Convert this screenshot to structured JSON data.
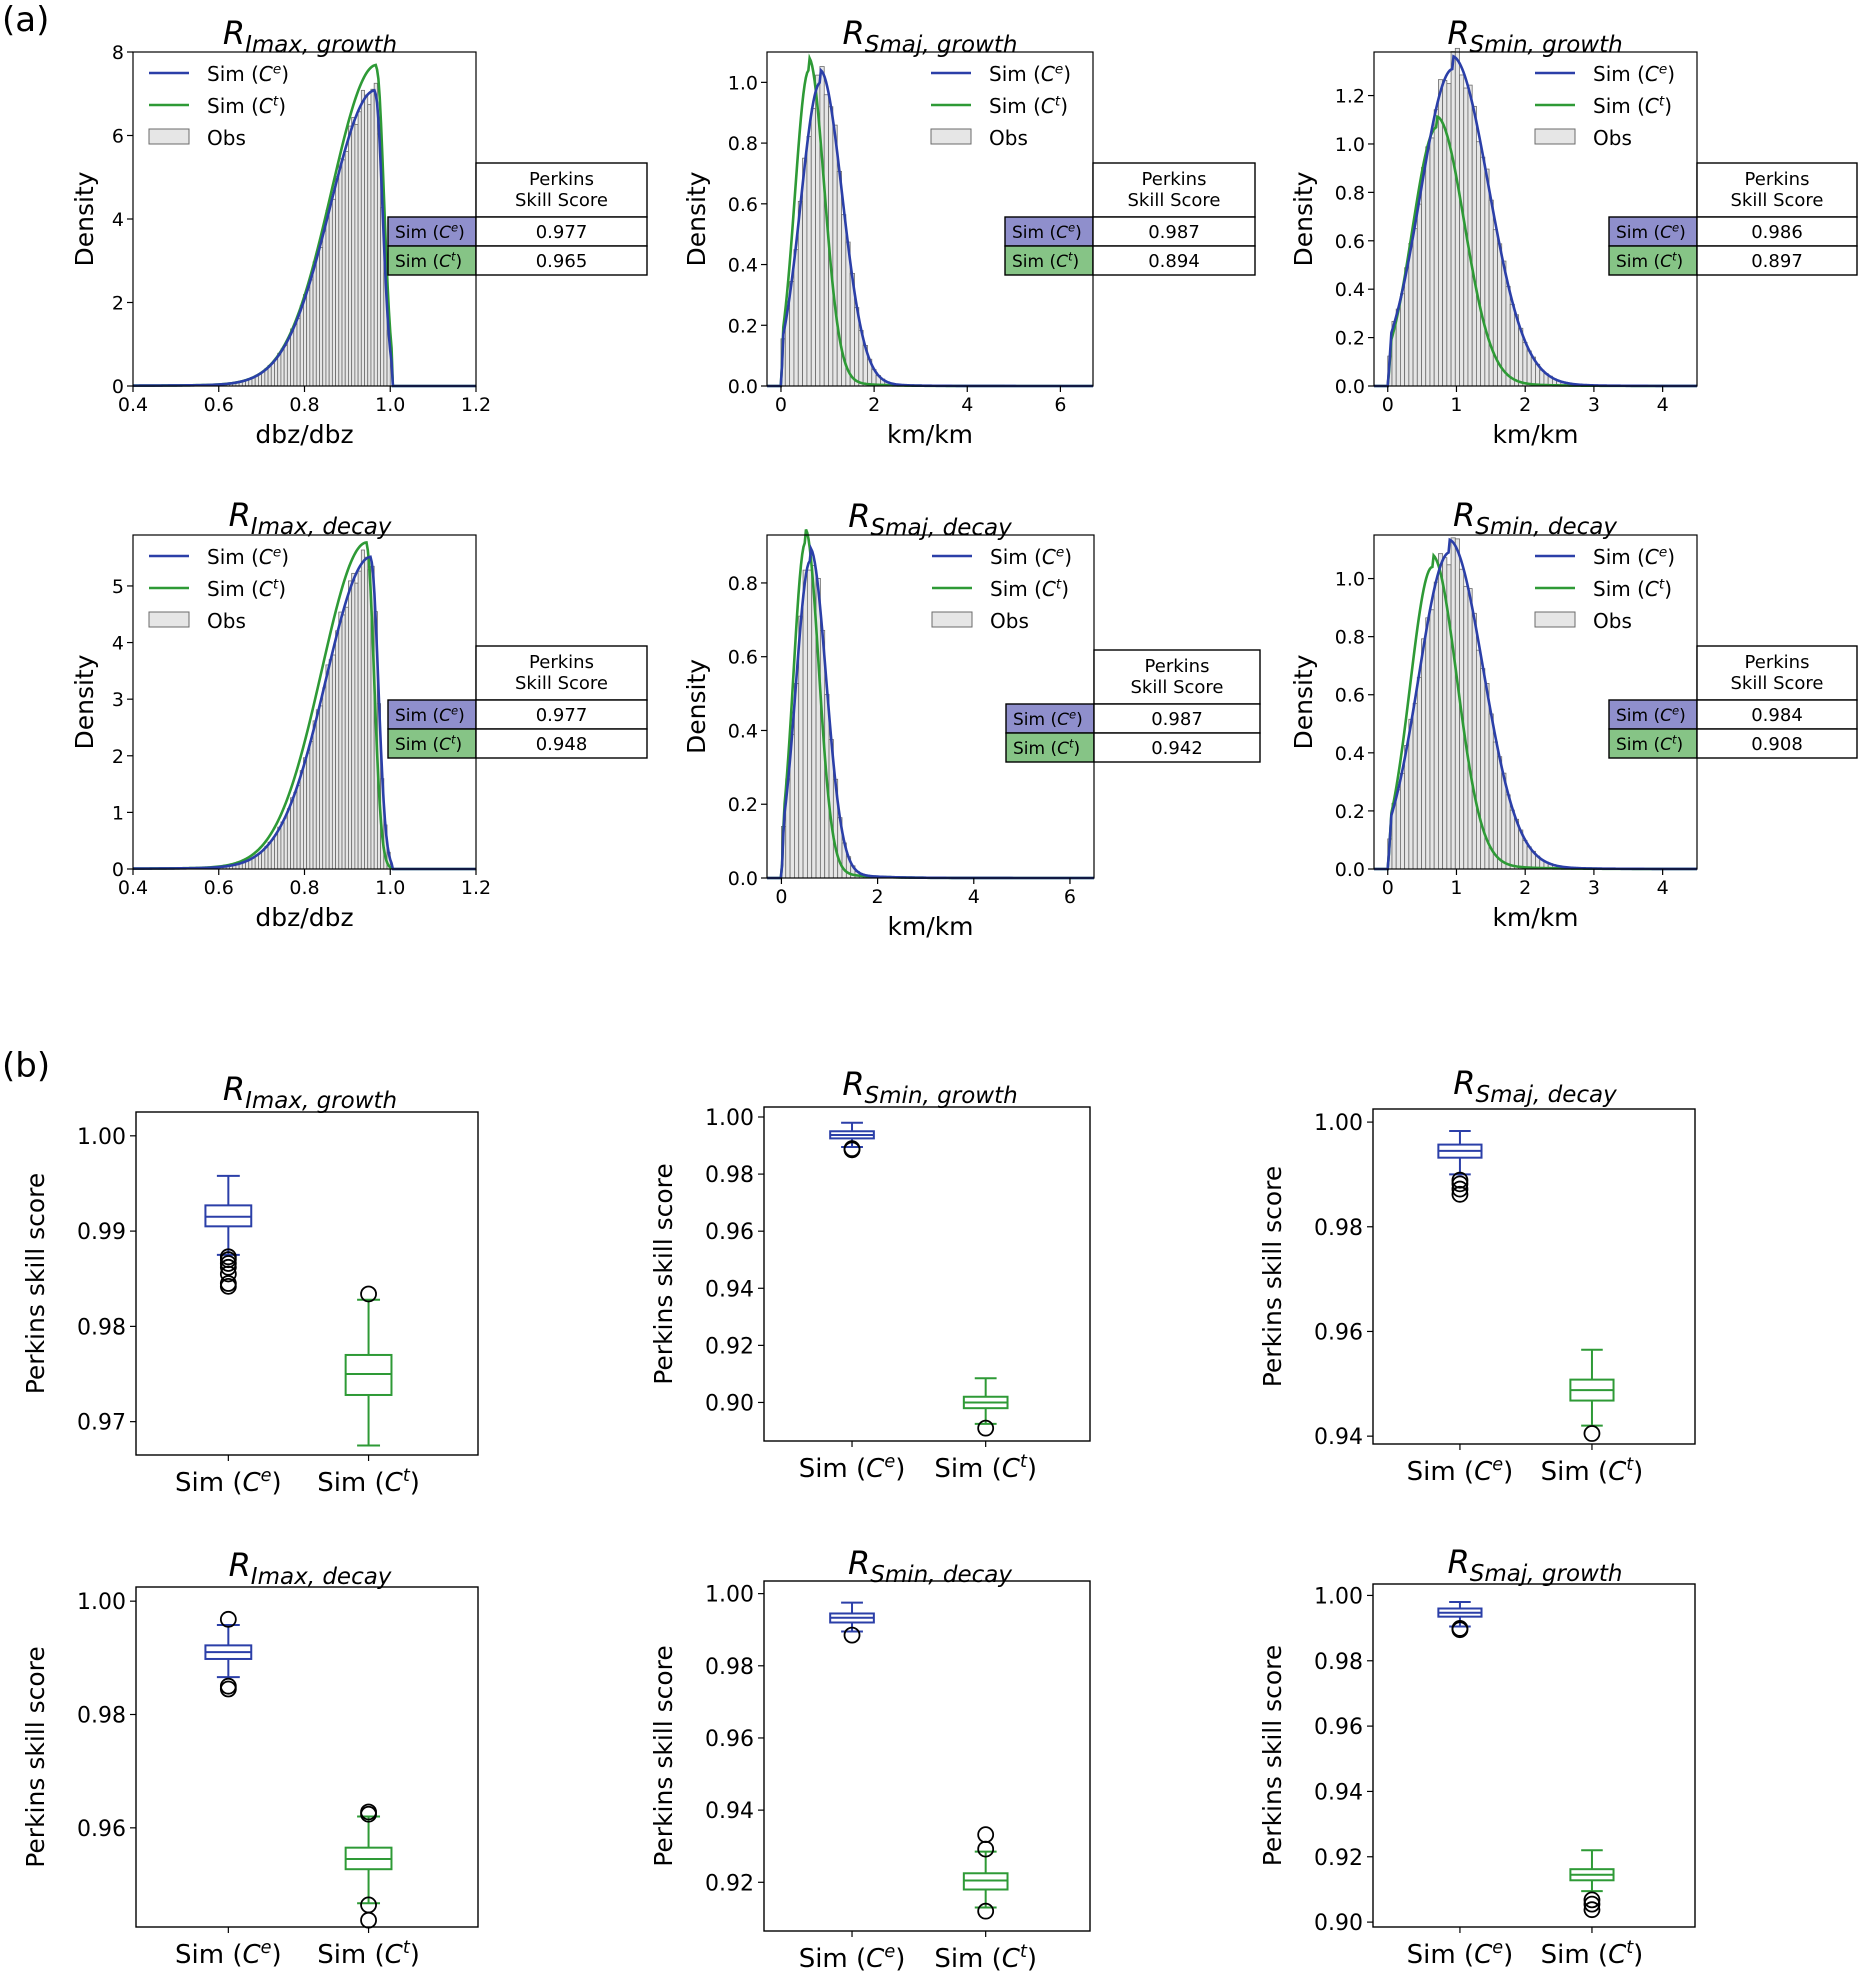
{
  "figure": {
    "panel_a_label": "(a)",
    "panel_b_label": "(b)"
  },
  "colors": {
    "sim_ce": "#2b3fa8",
    "sim_ct": "#2e9a36",
    "obs_fill": "#e6e6e6",
    "obs_edge": "#6b6b6b",
    "table_ce_bg": "#8f8fcc",
    "table_ct_bg": "#86c486"
  },
  "chart_data": [
    {
      "type": "histogram_density",
      "title": "R",
      "title_subscript": "Imax, growth",
      "xlabel": "dbz/dbz",
      "ylabel": "Density",
      "xlim": [
        0.4,
        1.2
      ],
      "ylim": [
        0,
        8
      ],
      "xticks": [
        "0.4",
        "0.6",
        "0.8",
        "1.0",
        "1.2"
      ],
      "yticks": [
        "0",
        "2",
        "4",
        "6",
        "8"
      ],
      "legend": [
        "Sim (C^e)",
        "Sim (C^t)",
        "Obs"
      ],
      "legend_placement": "top-left",
      "dist": {
        "kind": "leftskew",
        "mode": 0.965,
        "cutoff": 1.0,
        "lo": 0.4,
        "peak": 7.0,
        "peak_ct": 7.6,
        "shift_ct": 0.003
      },
      "table": {
        "header": [
          "Perkins",
          "Skill Score"
        ],
        "rows": [
          {
            "label": "Sim (C^e)",
            "value": "0.977"
          },
          {
            "label": "Sim (C^t)",
            "value": "0.965"
          }
        ]
      }
    },
    {
      "type": "histogram_density",
      "title": "R",
      "title_subscript": "Smaj, growth",
      "xlabel": "km/km",
      "ylabel": "Density",
      "xlim": [
        -0.3,
        6.7
      ],
      "ylim": [
        0,
        1.1
      ],
      "xticks": [
        "0",
        "2",
        "4",
        "6"
      ],
      "yticks": [
        "0.0",
        "0.2",
        "0.4",
        "0.6",
        "0.8",
        "1.0"
      ],
      "legend": [
        "Sim (C^e)",
        "Sim (C^t)",
        "Obs"
      ],
      "legend_placement": "top-right",
      "dist": {
        "kind": "rightskew",
        "mode": 0.85,
        "peak": 1.0,
        "peak_ct": 1.04,
        "mode_ct": 0.6,
        "xmax": 6.5
      },
      "table": {
        "header": [
          "Perkins",
          "Skill Score"
        ],
        "rows": [
          {
            "label": "Sim (C^e)",
            "value": "0.987"
          },
          {
            "label": "Sim (C^t)",
            "value": "0.894"
          }
        ]
      }
    },
    {
      "type": "histogram_density",
      "title": "R",
      "title_subscript": "Smin, growth",
      "xlabel": "km/km",
      "ylabel": "Density",
      "xlim": [
        -0.2,
        4.5
      ],
      "ylim": [
        0,
        1.38
      ],
      "xticks": [
        "0",
        "1",
        "2",
        "3",
        "4"
      ],
      "yticks": [
        "0.0",
        "0.2",
        "0.4",
        "0.6",
        "0.8",
        "1.0",
        "1.2"
      ],
      "legend": [
        "Sim (C^e)",
        "Sim (C^t)",
        "Obs"
      ],
      "legend_placement": "top-right",
      "dist": {
        "kind": "rightskew",
        "mode": 0.95,
        "peak": 1.31,
        "peak_ct": 1.07,
        "mode_ct": 0.72,
        "xmax": 4.3
      },
      "table": {
        "header": [
          "Perkins",
          "Skill Score"
        ],
        "rows": [
          {
            "label": "Sim (C^e)",
            "value": "0.986"
          },
          {
            "label": "Sim (C^t)",
            "value": "0.897"
          }
        ]
      }
    },
    {
      "type": "histogram_density",
      "title": "R",
      "title_subscript": "Imax, decay",
      "xlabel": "dbz/dbz",
      "ylabel": "Density",
      "xlim": [
        0.4,
        1.2
      ],
      "ylim": [
        0,
        5.9
      ],
      "xticks": [
        "0.4",
        "0.6",
        "0.8",
        "1.0",
        "1.2"
      ],
      "yticks": [
        "0",
        "1",
        "2",
        "3",
        "4",
        "5"
      ],
      "legend": [
        "Sim (C^e)",
        "Sim (C^t)",
        "Obs"
      ],
      "legend_placement": "top-left",
      "dist": {
        "kind": "leftskew",
        "mode": 0.955,
        "cutoff": 1.0,
        "lo": 0.4,
        "peak": 5.45,
        "peak_ct": 5.7,
        "shift_ct": -0.01
      },
      "table": {
        "header": [
          "Perkins",
          "Skill Score"
        ],
        "rows": [
          {
            "label": "Sim (C^e)",
            "value": "0.977"
          },
          {
            "label": "Sim (C^t)",
            "value": "0.948"
          }
        ]
      }
    },
    {
      "type": "histogram_density",
      "title": "R",
      "title_subscript": "Smaj, decay",
      "xlabel": "km/km",
      "ylabel": "Density",
      "xlim": [
        -0.3,
        6.5
      ],
      "ylim": [
        0,
        0.93
      ],
      "xticks": [
        "0",
        "2",
        "4",
        "6"
      ],
      "yticks": [
        "0.0",
        "0.2",
        "0.4",
        "0.6",
        "0.8"
      ],
      "legend": [
        "Sim (C^e)",
        "Sim (C^t)",
        "Obs"
      ],
      "legend_placement": "top-right",
      "dist": {
        "kind": "rightskew",
        "mode": 0.6,
        "peak": 0.86,
        "peak_ct": 0.91,
        "mode_ct": 0.5,
        "xmax": 6.3
      },
      "table": {
        "header": [
          "Perkins",
          "Skill Score"
        ],
        "rows": [
          {
            "label": "Sim (C^e)",
            "value": "0.987"
          },
          {
            "label": "Sim (C^t)",
            "value": "0.942"
          }
        ]
      }
    },
    {
      "type": "histogram_density",
      "title": "R",
      "title_subscript": "Smin, decay",
      "xlabel": "km/km",
      "ylabel": "Density",
      "xlim": [
        -0.2,
        4.5
      ],
      "ylim": [
        0,
        1.15
      ],
      "xticks": [
        "0",
        "1",
        "2",
        "3",
        "4"
      ],
      "yticks": [
        "0.0",
        "0.2",
        "0.4",
        "0.6",
        "0.8",
        "1.0"
      ],
      "legend": [
        "Sim (C^e)",
        "Sim (C^t)",
        "Obs"
      ],
      "legend_placement": "top-right",
      "dist": {
        "kind": "rightskew",
        "mode": 0.9,
        "peak": 1.09,
        "peak_ct": 1.04,
        "mode_ct": 0.65,
        "xmax": 4.3
      },
      "table": {
        "header": [
          "Perkins",
          "Skill Score"
        ],
        "rows": [
          {
            "label": "Sim (C^e)",
            "value": "0.984"
          },
          {
            "label": "Sim (C^t)",
            "value": "0.908"
          }
        ]
      }
    },
    {
      "type": "boxplot",
      "title": "R",
      "title_subscript": "Imax, growth",
      "ylabel": "Perkins skill score",
      "categories": [
        "Sim (C^e)",
        "Sim (C^t)"
      ],
      "ylim": [
        0.9665,
        1.0025
      ],
      "yticks": [
        "0.97",
        "0.98",
        "0.99",
        "1.00"
      ],
      "boxes": [
        {
          "whisker_low": 0.9875,
          "q1": 0.9905,
          "median": 0.9915,
          "q3": 0.9927,
          "whisker_high": 0.9958,
          "outliers": [
            0.9842,
            0.9845,
            0.9855,
            0.9862,
            0.9866,
            0.987,
            0.9873
          ]
        },
        {
          "whisker_low": 0.9675,
          "q1": 0.9728,
          "median": 0.975,
          "q3": 0.977,
          "whisker_high": 0.9828,
          "outliers": [
            0.9834
          ]
        }
      ]
    },
    {
      "type": "boxplot",
      "title": "R",
      "title_subscript": "Smin, growth",
      "ylabel": "Perkins skill score",
      "categories": [
        "Sim (C^e)",
        "Sim (C^t)"
      ],
      "ylim": [
        0.8865,
        1.0035
      ],
      "yticks": [
        "0.90",
        "0.92",
        "0.94",
        "0.96",
        "0.98",
        "1.00"
      ],
      "boxes": [
        {
          "whisker_low": 0.9895,
          "q1": 0.9925,
          "median": 0.9937,
          "q3": 0.995,
          "whisker_high": 0.998,
          "outliers": [
            0.9885,
            0.9889
          ]
        },
        {
          "whisker_low": 0.8925,
          "q1": 0.898,
          "median": 0.9,
          "q3": 0.902,
          "whisker_high": 0.9085,
          "outliers": [
            0.891
          ]
        }
      ]
    },
    {
      "type": "boxplot",
      "title": "R",
      "title_subscript": "Smaj, decay",
      "ylabel": "Perkins skill score",
      "categories": [
        "Sim (C^e)",
        "Sim (C^t)"
      ],
      "ylim": [
        0.9385,
        1.0025
      ],
      "yticks": [
        "0.94",
        "0.96",
        "0.98",
        "1.00"
      ],
      "boxes": [
        {
          "whisker_low": 0.99,
          "q1": 0.9932,
          "median": 0.9945,
          "q3": 0.9957,
          "whisker_high": 0.9983,
          "outliers": [
            0.9862,
            0.9872,
            0.9882,
            0.9889
          ]
        },
        {
          "whisker_low": 0.942,
          "q1": 0.9468,
          "median": 0.9488,
          "q3": 0.9508,
          "whisker_high": 0.9565,
          "outliers": [
            0.9405
          ]
        }
      ]
    },
    {
      "type": "boxplot",
      "title": "R",
      "title_subscript": "Imax, decay",
      "ylabel": "Perkins skill score",
      "categories": [
        "Sim (C^e)",
        "Sim (C^t)"
      ],
      "ylim": [
        0.9425,
        1.0025
      ],
      "yticks": [
        "0.96",
        "0.98",
        "1.00"
      ],
      "boxes": [
        {
          "whisker_low": 0.9866,
          "q1": 0.9898,
          "median": 0.991,
          "q3": 0.9922,
          "whisker_high": 0.9958,
          "outliers": [
            0.9845,
            0.985,
            0.9968
          ]
        },
        {
          "whisker_low": 0.9467,
          "q1": 0.9527,
          "median": 0.9545,
          "q3": 0.9565,
          "whisker_high": 0.962,
          "outliers": [
            0.9437,
            0.9464,
            0.9624,
            0.9628
          ]
        }
      ]
    },
    {
      "type": "boxplot",
      "title": "R",
      "title_subscript": "Smin, decay",
      "ylabel": "Perkins skill score",
      "categories": [
        "Sim (C^e)",
        "Sim (C^t)"
      ],
      "ylim": [
        0.9065,
        1.0035
      ],
      "yticks": [
        "0.92",
        "0.94",
        "0.96",
        "0.98",
        "1.00"
      ],
      "boxes": [
        {
          "whisker_low": 0.9895,
          "q1": 0.992,
          "median": 0.9933,
          "q3": 0.9945,
          "whisker_high": 0.9975,
          "outliers": [
            0.9885
          ]
        },
        {
          "whisker_low": 0.913,
          "q1": 0.918,
          "median": 0.9205,
          "q3": 0.9225,
          "whisker_high": 0.9285,
          "outliers": [
            0.912,
            0.9292,
            0.9332
          ]
        }
      ]
    },
    {
      "type": "boxplot",
      "title": "R",
      "title_subscript": "Smaj, growth",
      "ylabel": "Perkins skill score",
      "categories": [
        "Sim (C^e)",
        "Sim (C^t)"
      ],
      "ylim": [
        0.8985,
        1.0035
      ],
      "yticks": [
        "0.90",
        "0.92",
        "0.94",
        "0.96",
        "0.98",
        "1.00"
      ],
      "boxes": [
        {
          "whisker_low": 0.9905,
          "q1": 0.9935,
          "median": 0.9947,
          "q3": 0.996,
          "whisker_high": 0.998,
          "outliers": [
            0.9895,
            0.9899
          ]
        },
        {
          "whisker_low": 0.9095,
          "q1": 0.9128,
          "median": 0.9145,
          "q3": 0.9162,
          "whisker_high": 0.922,
          "outliers": [
            0.9038,
            0.9055,
            0.9068
          ]
        }
      ]
    }
  ]
}
